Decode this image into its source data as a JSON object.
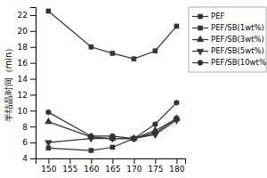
{
  "chart_data": {
    "type": "line",
    "ylabel": "半结晶时间（min）",
    "x": [
      150,
      160,
      165,
      170,
      175,
      180
    ],
    "series": [
      {
        "name": "PEF",
        "color": "#333333",
        "marker": "square",
        "values": [
          22.5,
          18.0,
          17.2,
          16.5,
          17.5,
          20.6
        ]
      },
      {
        "name": "PEF/SB(1wt%)",
        "color": "#333333",
        "marker": "square",
        "values": [
          5.3,
          5.0,
          5.4,
          6.5,
          7.2,
          9.0
        ]
      },
      {
        "name": "PEF/SB(3wt%)",
        "color": "#333333",
        "marker": "triangle-up",
        "values": [
          8.6,
          6.7,
          6.5,
          6.5,
          7.5,
          9.0
        ]
      },
      {
        "name": "PEF/SB(5wt%)",
        "color": "#333333",
        "marker": "triangle-down",
        "values": [
          6.0,
          6.5,
          6.5,
          6.5,
          7.0,
          8.8
        ]
      },
      {
        "name": "PEF/SB(10wt%)",
        "color": "#333333",
        "marker": "circle",
        "values": [
          9.8,
          6.8,
          6.8,
          6.5,
          8.3,
          11.0
        ]
      }
    ],
    "xlim": [
      147,
      182
    ],
    "ylim": [
      4,
      23
    ],
    "xticks": [
      150,
      155,
      160,
      165,
      170,
      175,
      180
    ],
    "yticks": [
      4,
      6,
      8,
      10,
      12,
      14,
      16,
      18,
      20,
      22
    ],
    "grid": false,
    "legend": "right"
  }
}
